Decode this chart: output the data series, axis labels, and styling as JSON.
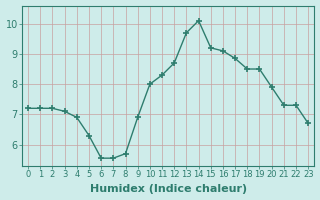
{
  "x": [
    0,
    1,
    2,
    3,
    4,
    5,
    6,
    7,
    8,
    9,
    10,
    11,
    12,
    13,
    14,
    15,
    16,
    17,
    18,
    19,
    20,
    21,
    22,
    23
  ],
  "y": [
    7.2,
    7.2,
    7.2,
    7.1,
    6.9,
    6.3,
    5.55,
    5.55,
    5.7,
    6.9,
    8.0,
    8.3,
    8.7,
    9.7,
    10.1,
    9.2,
    9.1,
    8.85,
    8.5,
    8.5,
    7.9,
    7.3,
    7.3,
    6.7
  ],
  "line_color": "#2e7d6e",
  "marker_color": "#2e7d6e",
  "bg_color": "#ceecea",
  "grid_color": "#c8a0a0",
  "xlabel": "Humidex (Indice chaleur)",
  "ylabel": "",
  "xlim": [
    -0.5,
    23.5
  ],
  "ylim": [
    5.3,
    10.6
  ],
  "yticks": [
    6,
    7,
    8,
    9,
    10
  ],
  "xticks": [
    0,
    1,
    2,
    3,
    4,
    5,
    6,
    7,
    8,
    9,
    10,
    11,
    12,
    13,
    14,
    15,
    16,
    17,
    18,
    19,
    20,
    21,
    22,
    23
  ],
  "xtick_labels": [
    "0",
    "1",
    "2",
    "3",
    "4",
    "5",
    "6",
    "7",
    "8",
    "9",
    "10",
    "11",
    "12",
    "13",
    "14",
    "15",
    "16",
    "17",
    "18",
    "19",
    "20",
    "21",
    "22",
    "23"
  ],
  "label_fontsize": 7,
  "tick_fontsize": 6
}
